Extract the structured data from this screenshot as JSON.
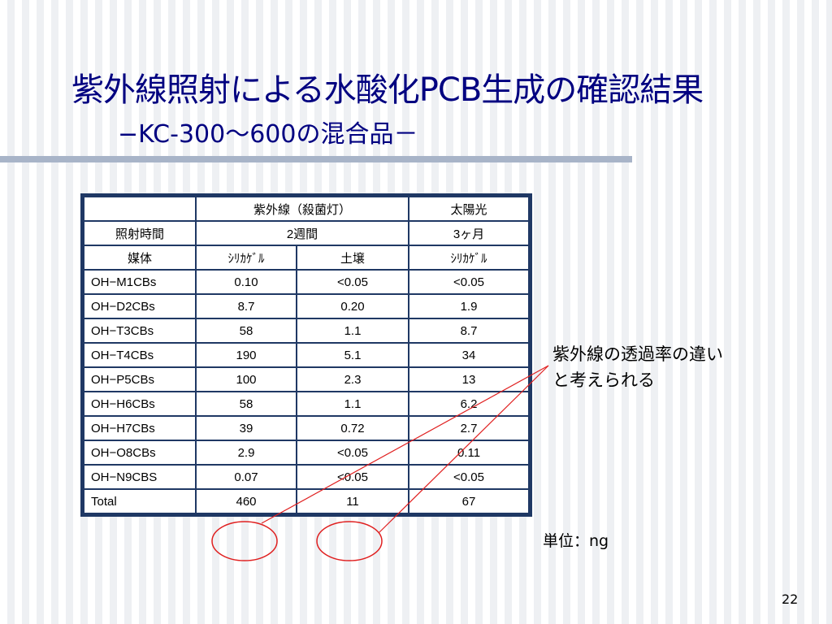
{
  "slide": {
    "title_line1": "紫外線照射による水酸化PCB生成の確認結果",
    "title_line2": "−KC-300～600の混合品－",
    "note_line1": "紫外線の透過率の違い",
    "note_line2": "と考えられる",
    "unit": "単位：ng",
    "page_number": "22"
  },
  "table": {
    "header_row1": [
      "",
      "紫外線（殺菌灯）",
      "太陽光"
    ],
    "header_row2": [
      "照射時間",
      "2週間",
      "3ヶ月"
    ],
    "header_row3": [
      "媒体",
      "ｼﾘｶｹﾞﾙ",
      "土壌",
      "ｼﾘｶｹﾞﾙ"
    ],
    "rows": [
      [
        "OH−M1CBs",
        "0.10",
        "<0.05",
        "<0.05"
      ],
      [
        "OH−D2CBs",
        "8.7",
        "0.20",
        "1.9"
      ],
      [
        "OH−T3CBs",
        "58",
        "1.1",
        "8.7"
      ],
      [
        "OH−T4CBs",
        "190",
        "5.1",
        "34"
      ],
      [
        "OH−P5CBs",
        "100",
        "2.3",
        "13"
      ],
      [
        "OH−H6CBs",
        "58",
        "1.1",
        "6.2"
      ],
      [
        "OH−H7CBs",
        "39",
        "0.72",
        "2.7"
      ],
      [
        "OH−O8CBs",
        "2.9",
        "<0.05",
        "0.11"
      ],
      [
        "OH−N9CBS",
        "0.07",
        "<0.05",
        "<0.05"
      ],
      [
        "Total",
        "460",
        "11",
        "67"
      ]
    ]
  },
  "colors": {
    "title": "#000080",
    "table_border": "#1f3864",
    "annotation": "#e02020",
    "rule": "#a8b4c8"
  }
}
